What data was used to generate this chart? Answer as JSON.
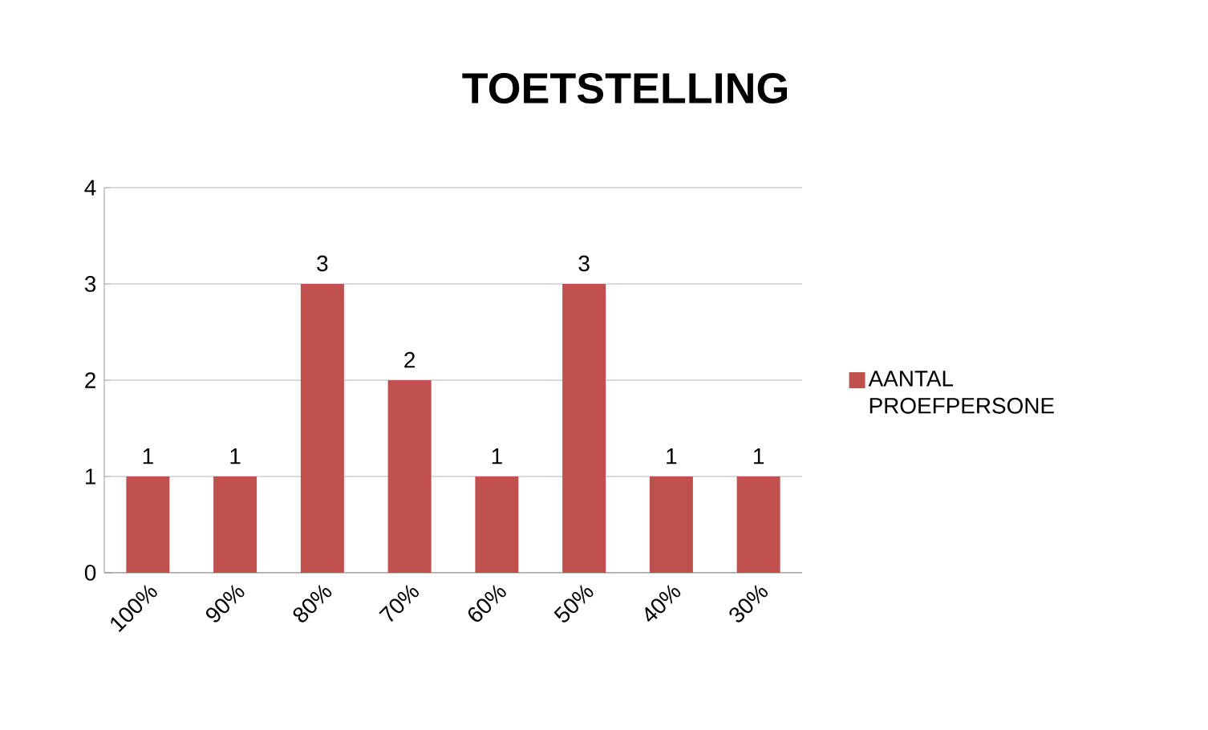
{
  "chart_data": {
    "type": "bar",
    "title": "TOETSTELLING",
    "categories": [
      "100%",
      "90%",
      "80%",
      "70%",
      "60%",
      "50%",
      "40%",
      "30%"
    ],
    "series": [
      {
        "name": "AANTAL PROEFPERSONE",
        "color": "#c0504d",
        "values": [
          1,
          1,
          3,
          2,
          1,
          3,
          1,
          1
        ]
      }
    ],
    "ylim": [
      0,
      4
    ],
    "yticks": [
      0,
      1,
      2,
      3,
      4
    ],
    "grid": "y",
    "legend": "right",
    "data_labels": true
  }
}
